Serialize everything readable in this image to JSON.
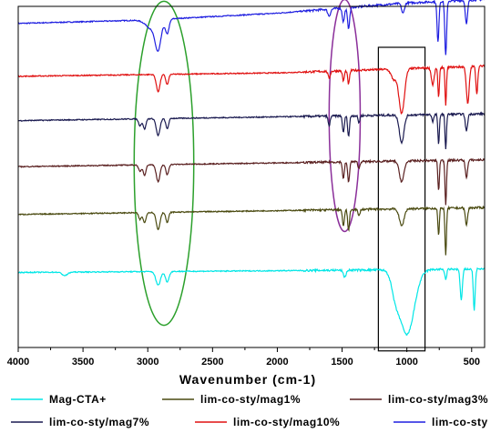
{
  "chart_data": {
    "type": "line",
    "xlabel": "Wavenumber (cm-1)",
    "ylabel": "",
    "xlim": [
      4000,
      400
    ],
    "x_ticks": [
      "4000",
      "3500",
      "3000",
      "2500",
      "2000",
      "1500",
      "1000",
      "500"
    ],
    "x_tick_values": [
      4000,
      3500,
      3000,
      2500,
      2000,
      1500,
      1000,
      500
    ],
    "grid": false,
    "legend_position": "bottom",
    "series": [
      {
        "name": "lim-co-sty",
        "color": "#1f1fe0",
        "baseline": 0.95,
        "drift": [
          [
            4000,
            0
          ],
          [
            3000,
            0.01
          ],
          [
            2000,
            0.03
          ],
          [
            1000,
            0.06
          ],
          [
            400,
            0.07
          ]
        ],
        "peaks": [
          [
            2955,
            0.03,
            70
          ],
          [
            2920,
            0.07,
            30
          ],
          [
            2850,
            0.04,
            20
          ],
          [
            1600,
            0.02,
            15
          ],
          [
            1490,
            0.04,
            12
          ],
          [
            1450,
            0.06,
            12
          ],
          [
            1030,
            0.03,
            15
          ],
          [
            760,
            0.12,
            10
          ],
          [
            700,
            0.16,
            10
          ],
          [
            540,
            0.07,
            12
          ]
        ]
      },
      {
        "name": "lim-co-sty/mag10%",
        "color": "#e01010",
        "baseline": 0.795,
        "drift": [
          [
            4000,
            0
          ],
          [
            2000,
            0.01
          ],
          [
            400,
            0.03
          ]
        ],
        "peaks": [
          [
            2920,
            0.05,
            20
          ],
          [
            2850,
            0.03,
            15
          ],
          [
            1600,
            0.02,
            12
          ],
          [
            1490,
            0.03,
            10
          ],
          [
            1450,
            0.04,
            10
          ],
          [
            1100,
            0.03,
            30
          ],
          [
            1040,
            0.13,
            30
          ],
          [
            800,
            0.05,
            15
          ],
          [
            755,
            0.09,
            8
          ],
          [
            700,
            0.11,
            8
          ],
          [
            530,
            0.11,
            15
          ],
          [
            460,
            0.08,
            10
          ]
        ]
      },
      {
        "name": "lim-co-sty/mag7%",
        "color": "#1a1a50",
        "baseline": 0.665,
        "drift": [
          [
            4000,
            0
          ],
          [
            400,
            0.02
          ]
        ],
        "peaks": [
          [
            3060,
            0.02,
            15
          ],
          [
            3025,
            0.03,
            15
          ],
          [
            2920,
            0.05,
            20
          ],
          [
            2850,
            0.03,
            15
          ],
          [
            1600,
            0.03,
            10
          ],
          [
            1490,
            0.05,
            10
          ],
          [
            1450,
            0.06,
            10
          ],
          [
            1370,
            0.02,
            10
          ],
          [
            1040,
            0.08,
            25
          ],
          [
            800,
            0.02,
            10
          ],
          [
            755,
            0.09,
            8
          ],
          [
            700,
            0.1,
            8
          ],
          [
            540,
            0.05,
            12
          ]
        ]
      },
      {
        "name": "lim-co-sty/mag3%",
        "color": "#5a2020",
        "baseline": 0.53,
        "drift": [
          [
            4000,
            0
          ],
          [
            400,
            0.02
          ]
        ],
        "peaks": [
          [
            3060,
            0.02,
            15
          ],
          [
            3025,
            0.03,
            15
          ],
          [
            2920,
            0.05,
            20
          ],
          [
            2850,
            0.03,
            15
          ],
          [
            1490,
            0.05,
            10
          ],
          [
            1450,
            0.06,
            10
          ],
          [
            1370,
            0.02,
            10
          ],
          [
            1040,
            0.06,
            25
          ],
          [
            755,
            0.09,
            8
          ],
          [
            700,
            0.13,
            8
          ],
          [
            540,
            0.05,
            12
          ]
        ]
      },
      {
        "name": "lim-co-sty/mag1%",
        "color": "#4a4a10",
        "baseline": 0.39,
        "drift": [
          [
            4000,
            0
          ],
          [
            400,
            0.02
          ]
        ],
        "peaks": [
          [
            3060,
            0.02,
            15
          ],
          [
            3025,
            0.03,
            15
          ],
          [
            2920,
            0.05,
            20
          ],
          [
            2850,
            0.03,
            15
          ],
          [
            1490,
            0.05,
            10
          ],
          [
            1450,
            0.06,
            10
          ],
          [
            1370,
            0.02,
            10
          ],
          [
            1040,
            0.05,
            25
          ],
          [
            755,
            0.08,
            8
          ],
          [
            700,
            0.14,
            8
          ],
          [
            540,
            0.05,
            12
          ]
        ]
      },
      {
        "name": "Mag-CTA+",
        "color": "#00e6e6",
        "baseline": 0.22,
        "drift": [
          [
            4000,
            0
          ],
          [
            2000,
            0.005
          ],
          [
            400,
            0.01
          ]
        ],
        "peaks": [
          [
            3640,
            0.01,
            30
          ],
          [
            2920,
            0.04,
            25
          ],
          [
            2850,
            0.03,
            20
          ],
          [
            1480,
            0.02,
            15
          ],
          [
            1000,
            0.19,
            80
          ],
          [
            1090,
            0.05,
            40
          ],
          [
            700,
            0.03,
            10
          ],
          [
            580,
            0.09,
            12
          ],
          [
            480,
            0.12,
            10
          ]
        ]
      }
    ],
    "annotations": [
      {
        "shape": "ellipse",
        "color": "#2ca02c",
        "center_x": 2875,
        "center_y": 0.54,
        "span_x": 460,
        "span_y": 0.95
      },
      {
        "shape": "ellipse",
        "color": "#8b2f9a",
        "center_x": 1480,
        "center_y": 0.68,
        "span_x": 240,
        "span_y": 0.68
      },
      {
        "shape": "rect",
        "color": "#000000",
        "x_range": [
          1220,
          860
        ],
        "y_range": [
          -0.01,
          0.88
        ]
      }
    ],
    "legend": [
      {
        "label": "Mag-CTA+",
        "color": "#00e6e6"
      },
      {
        "label": "lim-co-sty/mag1%",
        "color": "#4a4a10"
      },
      {
        "label": "lim-co-sty/mag3%",
        "color": "#5a2020"
      },
      {
        "label": "lim-co-sty/mag7%",
        "color": "#1a1a50"
      },
      {
        "label": "lim-co-sty/mag10%",
        "color": "#e01010"
      },
      {
        "label": "lim-co-sty",
        "color": "#1f1fe0"
      }
    ]
  }
}
